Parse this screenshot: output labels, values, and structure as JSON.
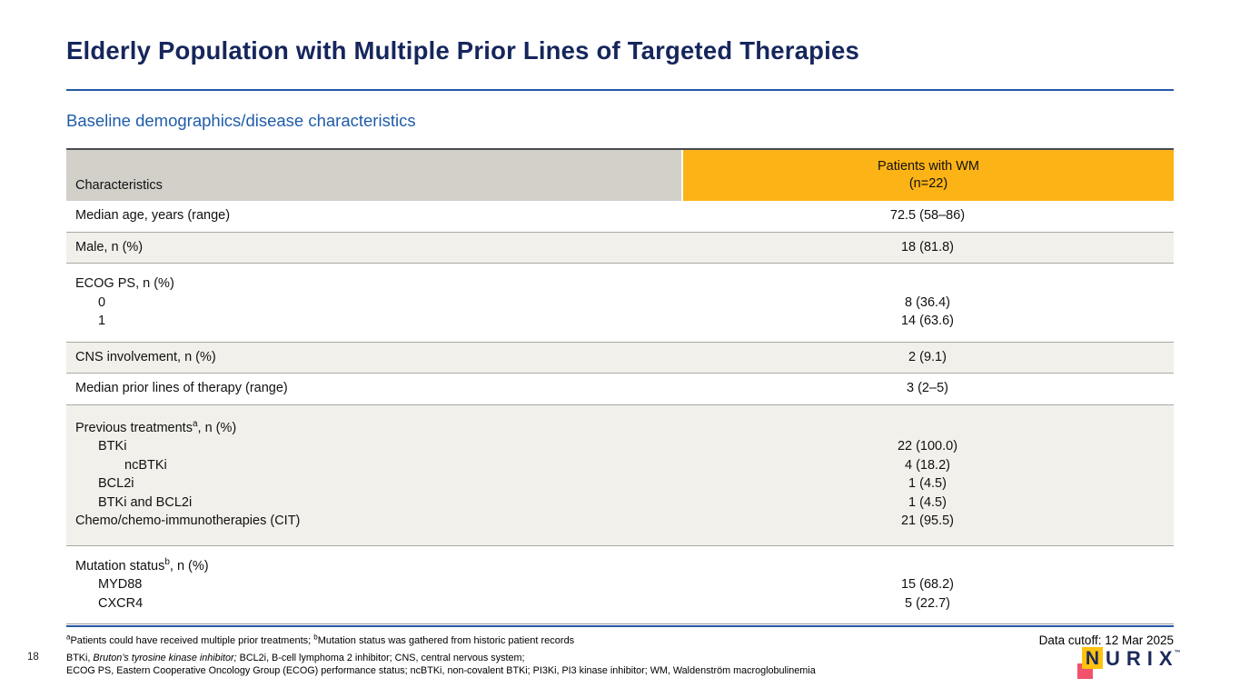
{
  "slide": {
    "title": "Elderly Population with Multiple Prior Lines of Targeted Therapies",
    "subtitle": "Baseline demographics/disease characteristics",
    "page_number": "18"
  },
  "table": {
    "header": {
      "col1": "Characteristics",
      "col2_line1": "Patients with WM",
      "col2_line2": "(n=22)"
    },
    "rows": [
      {
        "shade": "white",
        "pad": "s",
        "lines": [
          {
            "label": "Median age, years (range)",
            "indent": 0,
            "value": "72.5 (58–86)"
          }
        ]
      },
      {
        "shade": "gray",
        "pad": "s",
        "lines": [
          {
            "label": "Male, n (%)",
            "indent": 0,
            "value": "18 (81.8)"
          }
        ]
      },
      {
        "shade": "white",
        "pad": "m",
        "lines": [
          {
            "label": "ECOG PS, n (%)",
            "indent": 0,
            "value": ""
          },
          {
            "label": "0",
            "indent": 1,
            "value": "8 (36.4)"
          },
          {
            "label": "1",
            "indent": 1,
            "value": "14 (63.6)"
          }
        ]
      },
      {
        "shade": "gray",
        "pad": "s",
        "lines": [
          {
            "label": "CNS involvement, n (%)",
            "indent": 0,
            "value": "2 (9.1)"
          }
        ]
      },
      {
        "shade": "white",
        "pad": "s",
        "lines": [
          {
            "label": "Median prior lines of therapy (range)",
            "indent": 0,
            "value": "3 (2–5)"
          }
        ]
      },
      {
        "shade": "gray",
        "pad": "l",
        "lines": [
          {
            "pre": "Previous treatments",
            "sup": "a",
            "post": ", n (%)",
            "indent": 0,
            "value": ""
          },
          {
            "label": "BTKi",
            "indent": 1,
            "value": "22 (100.0)"
          },
          {
            "label": "ncBTKi",
            "indent": 2,
            "value": "4 (18.2)"
          },
          {
            "label": "BCL2i",
            "indent": 1,
            "value": "1 (4.5)"
          },
          {
            "label": "BTKi and BCL2i",
            "indent": 1,
            "value": "1 (4.5)"
          },
          {
            "label": "Chemo/chemo-immunotherapies (CIT)",
            "indent": 0,
            "value": "21 (95.5)"
          }
        ]
      },
      {
        "shade": "white",
        "pad": "m",
        "lines": [
          {
            "pre": "Mutation status",
            "sup": "b",
            "post": ", n (%)",
            "indent": 0,
            "value": ""
          },
          {
            "label": "MYD88",
            "indent": 1,
            "value": "15 (68.2)"
          },
          {
            "label": "CXCR4",
            "indent": 1,
            "value": "5 (22.7)"
          }
        ]
      }
    ]
  },
  "footer": {
    "footnote_parts": [
      {
        "sup": "a"
      },
      {
        "text": "Patients could have received multiple prior treatments; "
      },
      {
        "sup": "b"
      },
      {
        "text": "Mutation status was gathered from historic patient records"
      }
    ],
    "data_cutoff": "Data cutoff: 12 Mar 2025",
    "abbrev_line1_parts": [
      {
        "text": "BTKi, "
      },
      {
        "text": "Bruton’s tyrosine kinase inhibitor;",
        "italic": true
      },
      {
        "text": " BCL2i, B-cell lymphoma 2 inhibitor;  CNS, central nervous system;"
      }
    ],
    "abbrev_line2": "ECOG PS, Eastern Cooperative Oncology Group (ECOG) performance status; ncBTKi, non-covalent BTKi; PI3Ki, PI3 kinase inhibitor; WM, Waldenström macroglobulinemia"
  },
  "logo": {
    "mark_letter": "N",
    "text": "URIX",
    "tm": "™",
    "colors": {
      "navy": "#1C2A5C",
      "yellow": "#FFC20E",
      "pink": "#F0536B"
    }
  },
  "colors": {
    "title_navy": "#16265C",
    "subtitle_blue": "#1F5CA9",
    "rule_blue": "#2457A5",
    "header_gray": "#D2D0C9",
    "header_orange": "#FCB316",
    "row_gray": "#F1F0EB"
  }
}
